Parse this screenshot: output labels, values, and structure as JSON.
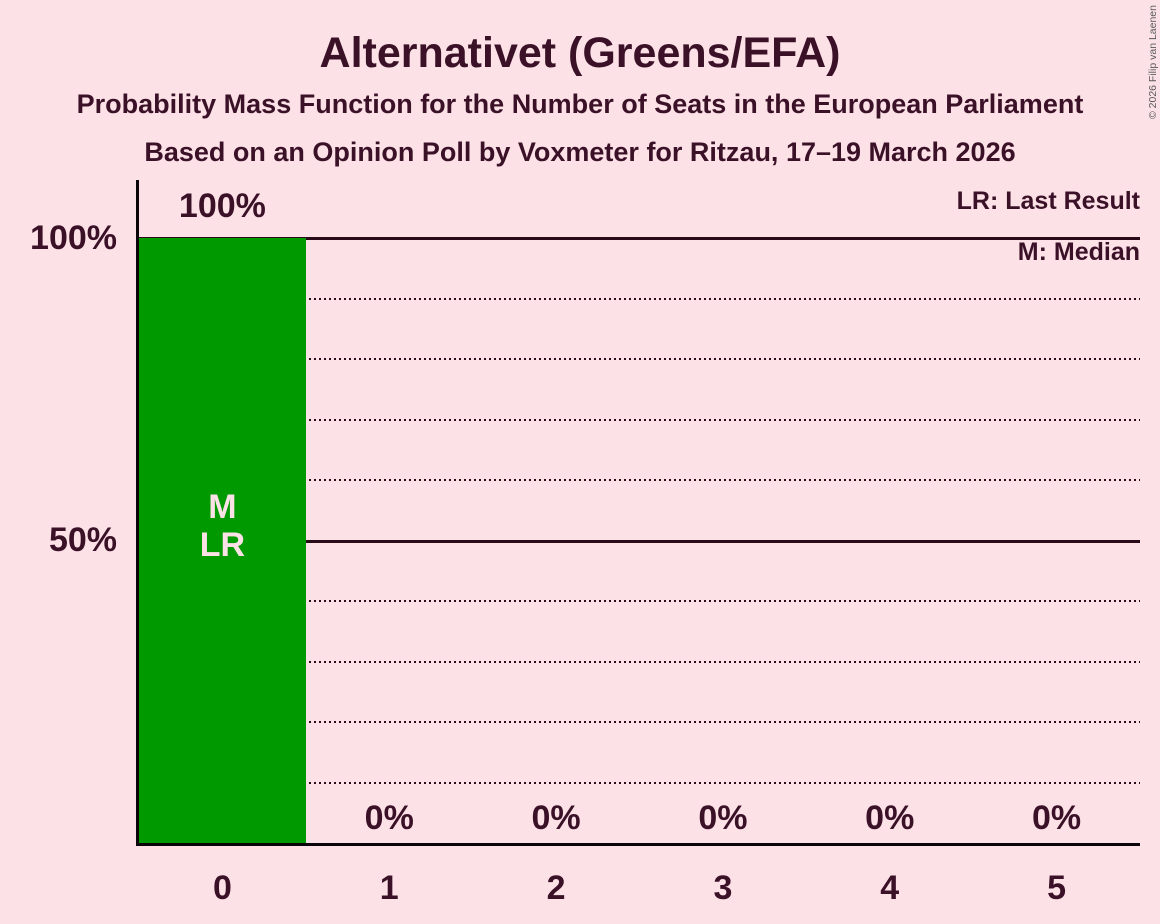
{
  "title": "Alternativet (Greens/EFA)",
  "subtitle": "Probability Mass Function for the Number of Seats in the European Parliament",
  "source_line": "Based on an Opinion Poll by Voxmeter for Ritzau, 17–19 March 2026",
  "copyright": "© 2026 Filip van Laenen",
  "colors": {
    "background": "#fce2e7",
    "text": "#3b1128",
    "gridline": "#2a0a18",
    "axis": "#0a0508",
    "bar": "#009900",
    "bar_annotation_text": "#fce2e7",
    "copyright_text": "#5a5a5a"
  },
  "chart_data": {
    "type": "bar",
    "title": "Alternativet (Greens/EFA)",
    "categories": [
      "0",
      "1",
      "2",
      "3",
      "4",
      "5"
    ],
    "values": [
      100,
      0,
      0,
      0,
      0,
      0
    ],
    "value_labels": [
      "100%",
      "0%",
      "0%",
      "0%",
      "0%",
      "0%"
    ],
    "bar_annotations": {
      "0": [
        "M",
        "LR"
      ]
    },
    "y_ticks": [
      {
        "value": 100,
        "label": "100%"
      },
      {
        "value": 50,
        "label": "50%"
      }
    ],
    "ylim": [
      0,
      100
    ],
    "gridlines": {
      "dotted_step": 10,
      "solid_values": [
        50,
        100
      ]
    },
    "legend": [
      {
        "key": "LR",
        "label": "LR: Last Result"
      },
      {
        "key": "M",
        "label": "M: Median"
      }
    ]
  }
}
